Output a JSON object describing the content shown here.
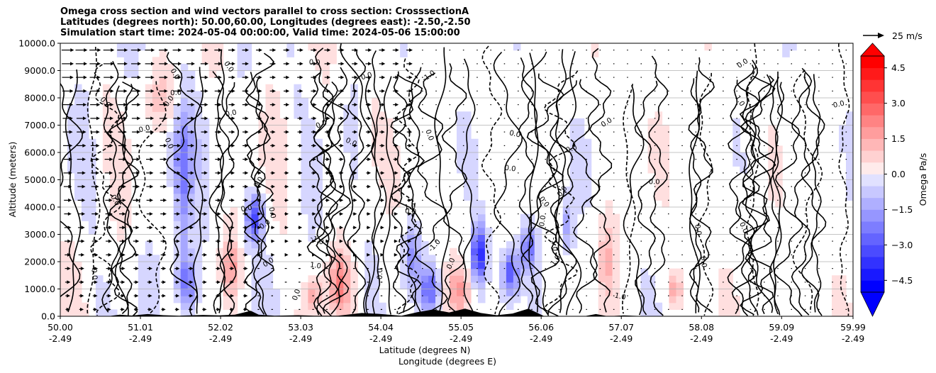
{
  "chart_data": {
    "type": "heatmap",
    "title_lines": [
      "Omega cross section and wind vectors parallel to cross section: CrosssectionA",
      "Latitudes (degrees north): 50.00,60.00, Longitudes (degrees east): -2.50,-2.50",
      "Simulation start time: 2024-05-04 00:00:00, Valid time: 2024-05-06 15:00:00"
    ],
    "ylabel": "Altitude (meters)",
    "xlabel_lines": [
      "Latitude (degrees N)",
      "Longitude (degrees E)"
    ],
    "ylim": [
      0,
      10000
    ],
    "yticks": [
      {
        "value": 0,
        "label": "0.0"
      },
      {
        "value": 1000,
        "label": "1000.0"
      },
      {
        "value": 2000,
        "label": "2000.0"
      },
      {
        "value": 3000,
        "label": "3000.0"
      },
      {
        "value": 4000,
        "label": "4000.0"
      },
      {
        "value": 5000,
        "label": "5000.0"
      },
      {
        "value": 6000,
        "label": "6000.0"
      },
      {
        "value": 7000,
        "label": "7000.0"
      },
      {
        "value": 8000,
        "label": "8000.0"
      },
      {
        "value": 9000,
        "label": "9000.0"
      },
      {
        "value": 10000,
        "label": "10000.0"
      }
    ],
    "xlim": [
      50.0,
      59.99
    ],
    "xticks": [
      {
        "value": 50.0,
        "lat": "50.00",
        "lon": "-2.49"
      },
      {
        "value": 51.01,
        "lat": "51.01",
        "lon": "-2.49"
      },
      {
        "value": 52.02,
        "lat": "52.02",
        "lon": "-2.49"
      },
      {
        "value": 53.03,
        "lat": "53.03",
        "lon": "-2.49"
      },
      {
        "value": 54.04,
        "lat": "54.04",
        "lon": "-2.49"
      },
      {
        "value": 55.05,
        "lat": "55.05",
        "lon": "-2.49"
      },
      {
        "value": 56.06,
        "lat": "56.06",
        "lon": "-2.49"
      },
      {
        "value": 57.07,
        "lat": "57.07",
        "lon": "-2.49"
      },
      {
        "value": 58.08,
        "lat": "58.08",
        "lon": "-2.49"
      },
      {
        "value": 59.09,
        "lat": "59.09",
        "lon": "-2.49"
      },
      {
        "value": 59.99,
        "lat": "59.99",
        "lon": "-2.49"
      }
    ],
    "grid": "horizontal",
    "colorbar": {
      "label": "Omega Pa/s",
      "range": [
        -5,
        5
      ],
      "extend": "both",
      "ticks": [
        {
          "value": 4.5,
          "label": "4.5"
        },
        {
          "value": 3.0,
          "label": "3.0"
        },
        {
          "value": 1.5,
          "label": "1.5"
        },
        {
          "value": 0.0,
          "label": "0.0"
        },
        {
          "value": -1.5,
          "label": "−1.5"
        },
        {
          "value": -3.0,
          "label": "−3.0"
        },
        {
          "value": -4.5,
          "label": "−4.5"
        }
      ],
      "colors": {
        "max": "#ff0000",
        "min": "#0000ff",
        "mid": "#ffffff"
      }
    },
    "quiver_key": {
      "label": "25 m/s",
      "speed": 25
    },
    "contour_labels": [
      "0.0",
      "-1.0",
      "1.0"
    ],
    "terrain_color": "#000000",
    "contour_color": "#000000",
    "grid_color": "#b0b0b0"
  }
}
